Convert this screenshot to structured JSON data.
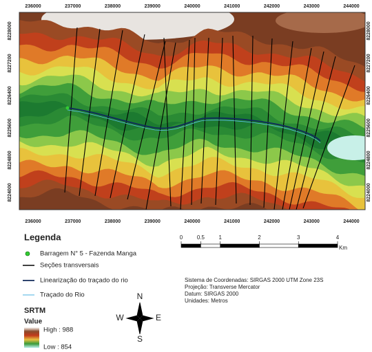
{
  "map": {
    "x_labels": [
      "236000",
      "237000",
      "238000",
      "239000",
      "240000",
      "241000",
      "242000",
      "243000",
      "244000"
    ],
    "y_labels": [
      "8228000",
      "8227200",
      "8226400",
      "8225600",
      "8224800",
      "8224000"
    ]
  },
  "legend": {
    "title": "Legenda",
    "items": [
      "Barragem N° 5 - Fazenda Manga",
      "Seções transversais",
      "Linearização do traçado do rio",
      "Traçado do Rio"
    ],
    "raster_title": "SRTM",
    "value_label": "Value",
    "high": "High : 988",
    "low": "Low : 854"
  },
  "scale_bar": {
    "ticks": [
      0,
      0.5,
      1,
      2,
      3,
      4
    ],
    "unit": "Km"
  },
  "coordinate_info": [
    "Sistema de Coordenadas: SIRGAS 2000 UTM Zone 23S",
    "Projeção: Transverse Mercator",
    "Datum: SIRGAS 2000",
    "Unidades: Metros"
  ],
  "north_arrow": {
    "n": "N",
    "w": "W",
    "e": "E",
    "s": "S"
  }
}
